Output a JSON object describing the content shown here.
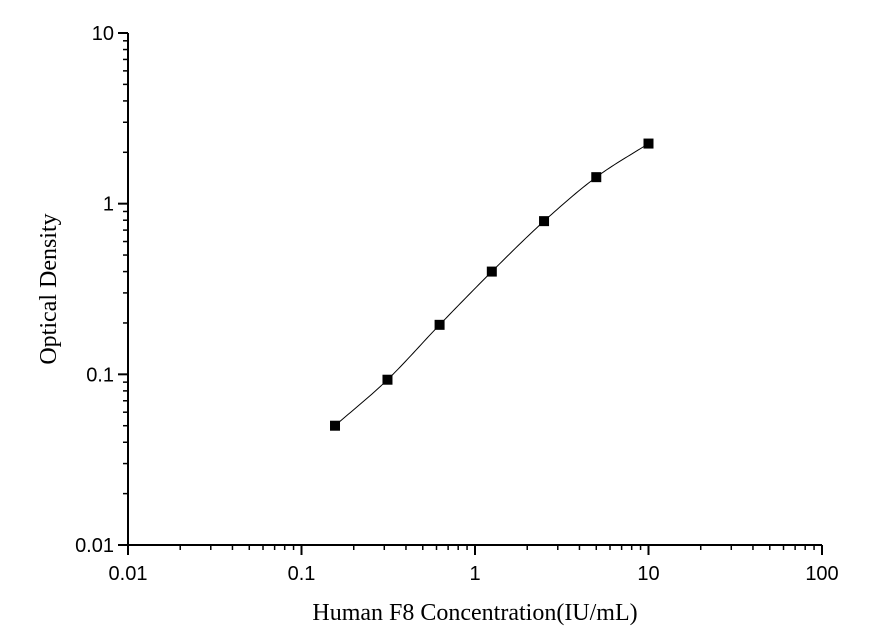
{
  "chart_data": {
    "type": "scatter",
    "title": "",
    "xlabel": "Human F8 Concentration(IU/mL)",
    "ylabel": "Optical Density",
    "xscale": "log",
    "yscale": "log",
    "xlim": [
      0.01,
      100
    ],
    "ylim": [
      0.01,
      10
    ],
    "x_ticks": [
      0.01,
      0.1,
      1,
      10,
      100
    ],
    "x_tick_labels": [
      "0.01",
      "0.1",
      "1",
      "10",
      "100"
    ],
    "y_ticks": [
      0.01,
      0.1,
      1,
      10
    ],
    "y_tick_labels": [
      "0.01",
      "0.1",
      "1",
      "10"
    ],
    "grid": false,
    "legend": false,
    "series": [
      {
        "marker": "square",
        "color": "#000000",
        "x": [
          0.156,
          0.313,
          0.625,
          1.25,
          2.5,
          5,
          10
        ],
        "y": [
          0.05,
          0.093,
          0.195,
          0.4,
          0.79,
          1.43,
          2.25
        ],
        "fit_curve": true
      }
    ]
  }
}
